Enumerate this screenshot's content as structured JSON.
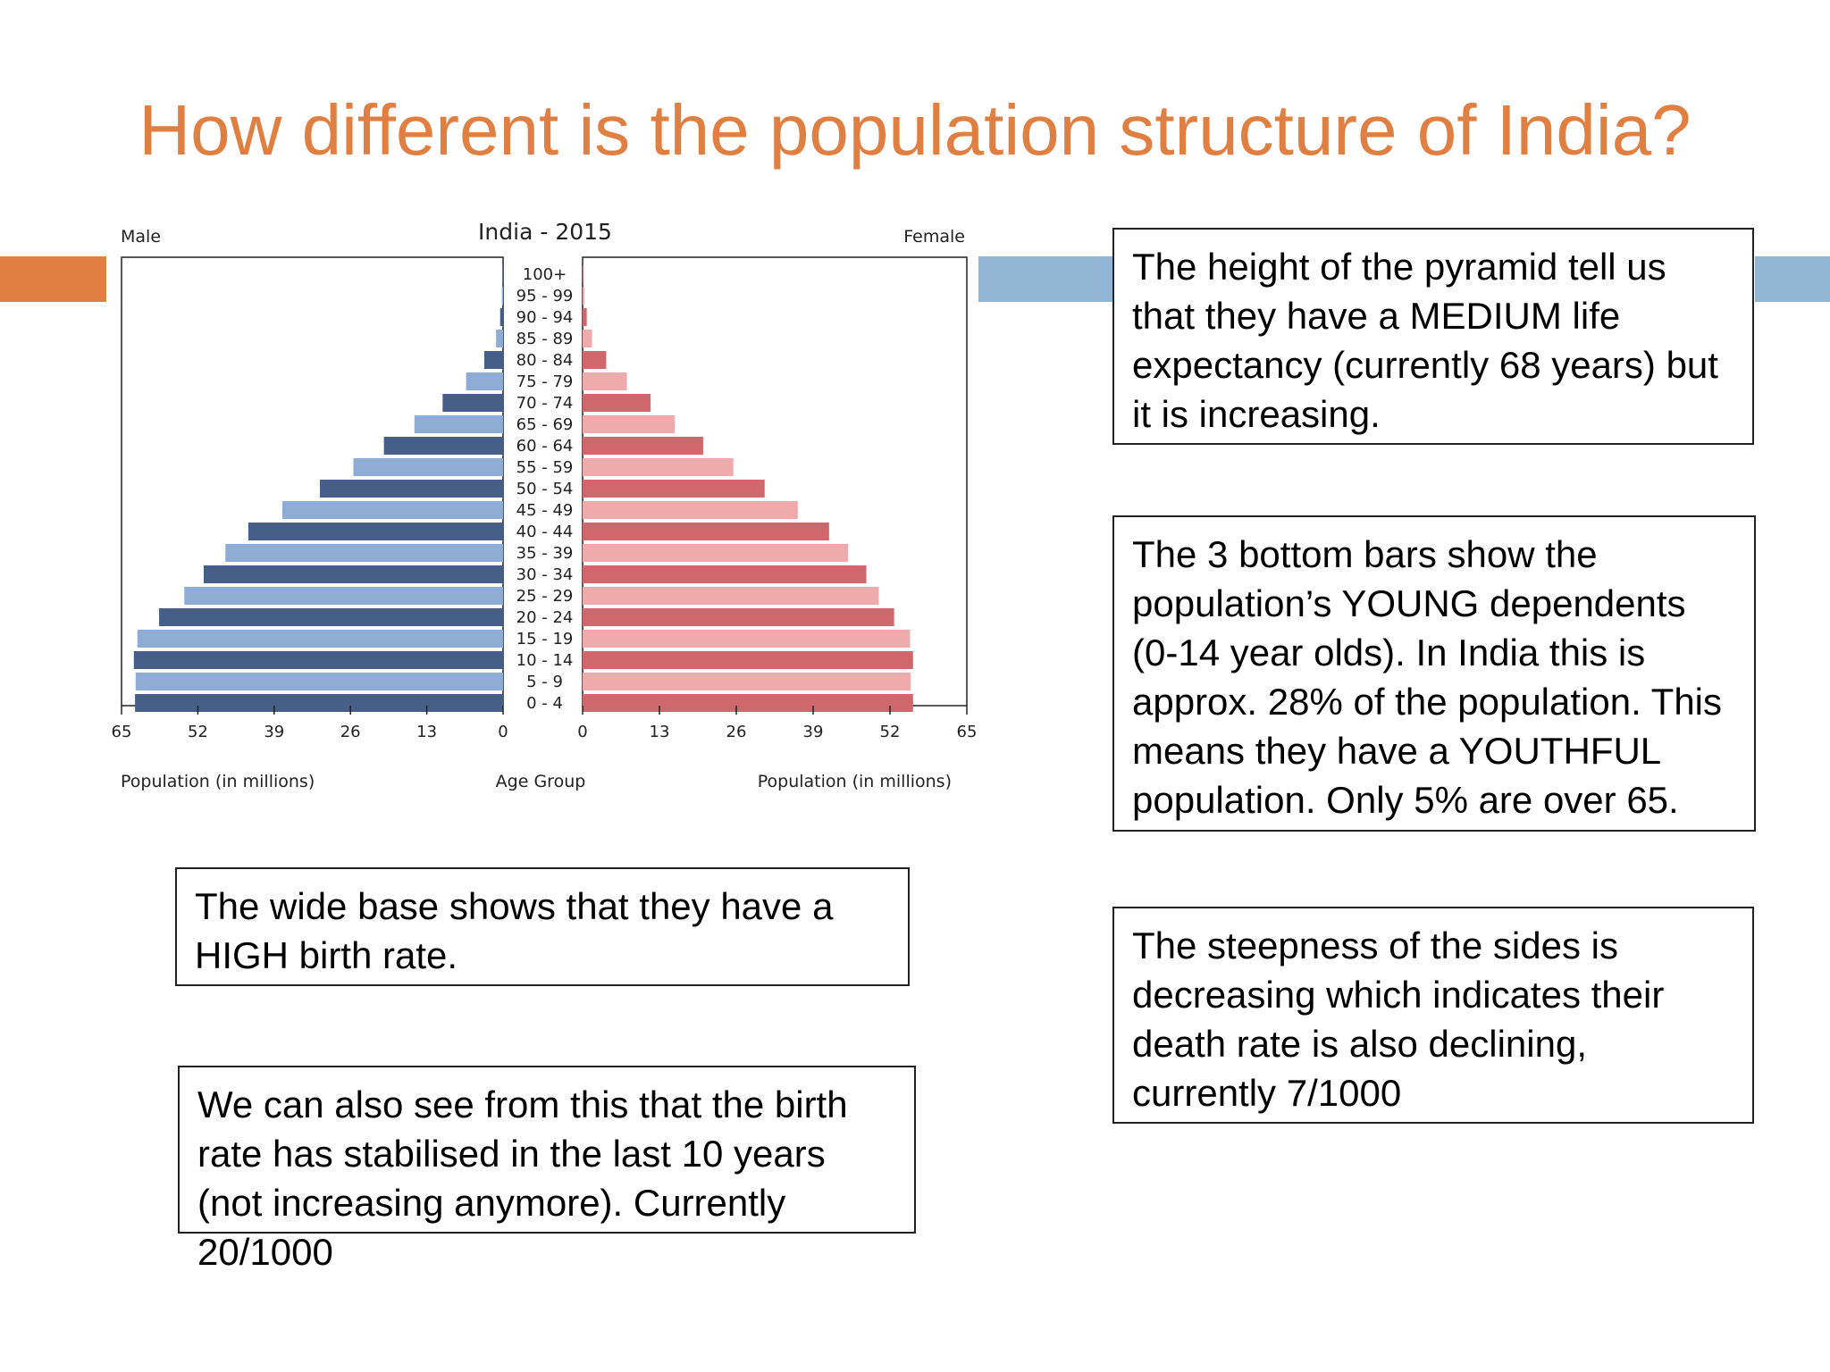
{
  "slide": {
    "title": "How different is the population structure of India?"
  },
  "notes": {
    "height": "The height of the pyramid tell us that they have a MEDIUM life expectancy (currently 68 years) but it is increasing.",
    "young": "The 3 bottom bars show the population’s YOUNG dependents (0-14 year olds). In India this is approx.  28% of the population. This means they have a YOUTHFUL population. Only 5% are over 65.",
    "steepness": "The steepness of the sides is decreasing which indicates their death rate is also declining, currently 7/1000",
    "base": "The wide base shows that they have a HIGH birth rate.",
    "stabilised": "We can also see from this that the birth rate has stabilised in the last 10 years (not increasing anymore). Currently 20/1000"
  },
  "chart_data": {
    "type": "bar",
    "orientation": "horizontal",
    "title": "India - 2015",
    "left_label": "Male",
    "right_label": "Female",
    "xlabel_left": "Population (in millions)",
    "xlabel_center": "Age Group",
    "xlabel_right": "Population (in millions)",
    "xlim": [
      0,
      65
    ],
    "xticks": [
      65,
      52,
      39,
      26,
      13,
      0
    ],
    "xticks_right": [
      0,
      13,
      26,
      39,
      52,
      65
    ],
    "categories": [
      "100+",
      "95 - 99",
      "90 - 94",
      "85 - 89",
      "80 - 84",
      "75 - 79",
      "70 - 74",
      "65 - 69",
      "60 - 64",
      "55 - 59",
      "50 - 54",
      "45 - 49",
      "40 - 44",
      "35 - 39",
      "30 - 34",
      "25 - 29",
      "20 - 24",
      "15 - 19",
      "10 - 14",
      "5 - 9",
      "0 - 4"
    ],
    "series": [
      {
        "name": "Male",
        "values": [
          0.1,
          0.2,
          0.5,
          1.2,
          3.2,
          6.3,
          10.3,
          15.1,
          20.3,
          25.5,
          31.2,
          37.6,
          43.4,
          47.3,
          51.0,
          54.3,
          58.6,
          62.3,
          62.9,
          62.6,
          62.7
        ]
      },
      {
        "name": "Female",
        "values": [
          0.1,
          0.3,
          0.7,
          1.6,
          4.0,
          7.5,
          11.5,
          15.6,
          20.4,
          25.5,
          30.8,
          36.4,
          41.7,
          44.9,
          48.0,
          50.1,
          52.7,
          55.4,
          55.9,
          55.5,
          55.9
        ]
      }
    ],
    "colors": {
      "male_dark": "#465f89",
      "male_light": "#8eacd4",
      "female_dark": "#d0676d",
      "female_light": "#efabab"
    },
    "grid": false
  }
}
